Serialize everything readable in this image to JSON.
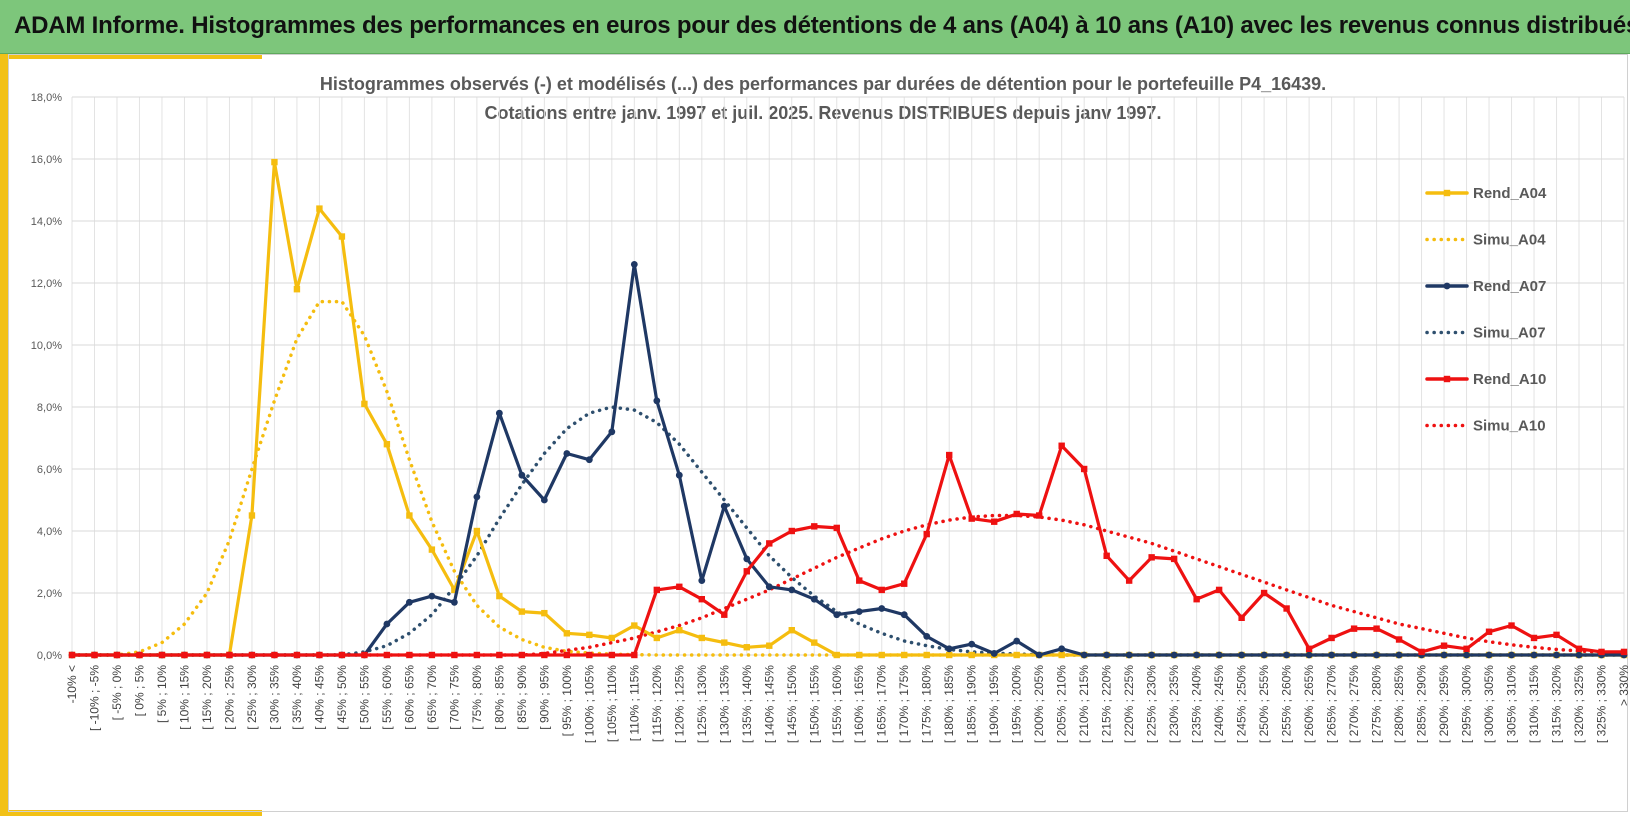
{
  "header": {
    "title": "ADAM Informe. Histogrammes des performances en euros pour des détentions de 4 ans (A04) à 10 ans (A10) avec les revenus connus distribués"
  },
  "colors": {
    "banner": "#7dc67b",
    "accent": "#f2c116",
    "A04": "#f5bd0f",
    "A07": "#1f3864",
    "A10": "#ee1111"
  },
  "chart_data": {
    "type": "line",
    "title": "Histogrammes observés (-) et modélisés (...) des performances par durées de détention pour le portefeuille P4_16439.",
    "subtitle": "Cotations entre janv. 1997 et juil. 2025. Revenus DISTRIBUES depuis janv 1997.",
    "xlabel": "",
    "ylabel": "",
    "ylim": [
      0,
      18
    ],
    "yticks": [
      "0,0%",
      "2,0%",
      "4,0%",
      "6,0%",
      "8,0%",
      "10,0%",
      "12,0%",
      "14,0%",
      "16,0%",
      "18,0%"
    ],
    "grid": true,
    "legend_position": "right",
    "categories": [
      "-10% <",
      "[ -10% ; -5%",
      "[ -5% ; 0%",
      "[ 0% ; 5%",
      "[ 5% ; 10%",
      "[ 10% ; 15%",
      "[ 15% ; 20%",
      "[ 20% ; 25%",
      "[ 25% ; 30%",
      "[ 30% ; 35%",
      "[ 35% ; 40%",
      "[ 40% ; 45%",
      "[ 45% ; 50%",
      "[ 50% ; 55%",
      "[ 55% ; 60%",
      "[ 60% ; 65%",
      "[ 65% ; 70%",
      "[ 70% ; 75%",
      "[ 75% ; 80%",
      "[ 80% ; 85%",
      "[ 85% ; 90%",
      "[ 90% ; 95%",
      "[ 95% ; 100%",
      "[ 100% ; 105%",
      "[ 105% ; 110%",
      "[ 110% ; 115%",
      "[ 115% ; 120%",
      "[ 120% ; 125%",
      "[ 125% ; 130%",
      "[ 130% ; 135%",
      "[ 135% ; 140%",
      "[ 140% ; 145%",
      "[ 145% ; 150%",
      "[ 150% ; 155%",
      "[ 155% ; 160%",
      "[ 160% ; 165%",
      "[ 165% ; 170%",
      "[ 170% ; 175%",
      "[ 175% ; 180%",
      "[ 180% ; 185%",
      "[ 185% ; 190%",
      "[ 190% ; 195%",
      "[ 195% ; 200%",
      "[ 200% ; 205%",
      "[ 205% ; 210%",
      "[ 210% ; 215%",
      "[ 215% ; 220%",
      "[ 220% ; 225%",
      "[ 225% ; 230%",
      "[ 230% ; 235%",
      "[ 235% ; 240%",
      "[ 240% ; 245%",
      "[ 245% ; 250%",
      "[ 250% ; 255%",
      "[ 255% ; 260%",
      "[ 260% ; 265%",
      "[ 265% ; 270%",
      "[ 270% ; 275%",
      "[ 275% ; 280%",
      "[ 280% ; 285%",
      "[ 285% ; 290%",
      "[ 290% ; 295%",
      "[ 295% ; 300%",
      "[ 300% ; 305%",
      "[ 305% ; 310%",
      "[ 310% ; 315%",
      "[ 315% ; 320%",
      "[ 320% ; 325%",
      "[ 325% ; 330%",
      "> 330%"
    ],
    "series": [
      {
        "name": "Rend_A04",
        "style": "solid",
        "marker": "square",
        "color": "#f5bd0f",
        "values": [
          0,
          0,
          0,
          0,
          0,
          0,
          0,
          0,
          4.5,
          15.9,
          11.8,
          14.4,
          13.5,
          8.1,
          6.8,
          4.5,
          3.4,
          2.1,
          4.0,
          1.9,
          1.4,
          1.35,
          0.7,
          0.65,
          0.55,
          0.95,
          0.55,
          0.8,
          0.55,
          0.4,
          0.25,
          0.3,
          0.8,
          0.4,
          0,
          0,
          0,
          0,
          0,
          0,
          0,
          0,
          0,
          0,
          0,
          0,
          0,
          0,
          0,
          0,
          0,
          0,
          0,
          0,
          0,
          0,
          0,
          0,
          0,
          0,
          0,
          0,
          0,
          0,
          0,
          0,
          0,
          0,
          0,
          0
        ]
      },
      {
        "name": "Simu_A04",
        "style": "dotted",
        "marker": "none",
        "color": "#f5bd0f",
        "values": [
          0,
          0,
          0,
          0.1,
          0.4,
          1.0,
          2.0,
          3.7,
          6.0,
          8.2,
          10.2,
          11.4,
          11.4,
          10.3,
          8.5,
          6.3,
          4.3,
          2.7,
          1.6,
          0.9,
          0.5,
          0.25,
          0.12,
          0.06,
          0.03,
          0.01,
          0,
          0,
          0,
          0,
          0,
          0,
          0,
          0,
          0,
          0,
          0,
          0,
          0,
          0,
          0,
          0,
          0,
          0,
          0,
          0,
          0,
          0,
          0,
          0,
          0,
          0,
          0,
          0,
          0,
          0,
          0,
          0,
          0,
          0,
          0,
          0,
          0,
          0,
          0,
          0,
          0,
          0,
          0,
          0
        ]
      },
      {
        "name": "Rend_A07",
        "style": "solid",
        "marker": "circle",
        "color": "#1f3864",
        "values": [
          0,
          0,
          0,
          0,
          0,
          0,
          0,
          0,
          0,
          0,
          0,
          0,
          0,
          0,
          1.0,
          1.7,
          1.9,
          1.7,
          5.1,
          7.8,
          5.8,
          5.0,
          6.5,
          6.3,
          7.2,
          12.6,
          8.2,
          5.8,
          2.4,
          4.8,
          3.1,
          2.2,
          2.1,
          1.8,
          1.3,
          1.4,
          1.5,
          1.3,
          0.6,
          0.2,
          0.35,
          0.05,
          0.45,
          0,
          0.2,
          0,
          0,
          0,
          0,
          0,
          0,
          0,
          0,
          0,
          0,
          0,
          0,
          0,
          0,
          0,
          0,
          0,
          0,
          0,
          0,
          0,
          0,
          0,
          0,
          0
        ]
      },
      {
        "name": "Simu_A07",
        "style": "dotted",
        "marker": "none",
        "color": "#2e4f6e",
        "values": [
          0,
          0,
          0,
          0,
          0,
          0,
          0,
          0,
          0,
          0,
          0,
          0,
          0,
          0.1,
          0.3,
          0.7,
          1.3,
          2.2,
          3.2,
          4.4,
          5.5,
          6.5,
          7.3,
          7.8,
          8.0,
          7.9,
          7.5,
          6.8,
          5.9,
          5.0,
          4.1,
          3.2,
          2.5,
          1.9,
          1.4,
          1.0,
          0.7,
          0.45,
          0.3,
          0.18,
          0.1,
          0.06,
          0.03,
          0.01,
          0,
          0,
          0,
          0,
          0,
          0,
          0,
          0,
          0,
          0,
          0,
          0,
          0,
          0,
          0,
          0,
          0,
          0,
          0,
          0,
          0,
          0,
          0,
          0,
          0,
          0
        ]
      },
      {
        "name": "Rend_A10",
        "style": "solid",
        "marker": "square",
        "color": "#ee1111",
        "values": [
          0,
          0,
          0,
          0,
          0,
          0,
          0,
          0,
          0,
          0,
          0,
          0,
          0,
          0,
          0,
          0,
          0,
          0,
          0,
          0,
          0,
          0,
          0,
          0,
          0,
          0,
          2.1,
          2.2,
          1.8,
          1.3,
          2.7,
          3.6,
          4.0,
          4.15,
          4.1,
          2.4,
          2.1,
          2.3,
          3.9,
          6.45,
          4.4,
          4.3,
          4.55,
          4.5,
          6.75,
          6.0,
          3.2,
          2.4,
          3.15,
          3.1,
          1.8,
          2.1,
          1.2,
          2.0,
          1.5,
          0.2,
          0.55,
          0.85,
          0.85,
          0.5,
          0.1,
          0.3,
          0.2,
          0.75,
          0.95,
          0.55,
          0.65,
          0.2,
          0.1,
          0.1
        ]
      },
      {
        "name": "Simu_A10",
        "style": "dotted",
        "marker": "none",
        "color": "#ee1111",
        "values": [
          0,
          0,
          0,
          0,
          0,
          0,
          0,
          0,
          0,
          0,
          0,
          0,
          0,
          0,
          0,
          0,
          0,
          0,
          0,
          0,
          0,
          0.05,
          0.15,
          0.25,
          0.4,
          0.55,
          0.75,
          0.95,
          1.2,
          1.5,
          1.8,
          2.1,
          2.45,
          2.8,
          3.15,
          3.45,
          3.75,
          4.0,
          4.2,
          4.35,
          4.45,
          4.5,
          4.5,
          4.45,
          4.35,
          4.2,
          4.0,
          3.8,
          3.6,
          3.35,
          3.1,
          2.85,
          2.6,
          2.35,
          2.1,
          1.85,
          1.6,
          1.4,
          1.2,
          1.0,
          0.85,
          0.7,
          0.55,
          0.43,
          0.33,
          0.25,
          0.18,
          0.13,
          0.09,
          0.06
        ]
      }
    ]
  }
}
